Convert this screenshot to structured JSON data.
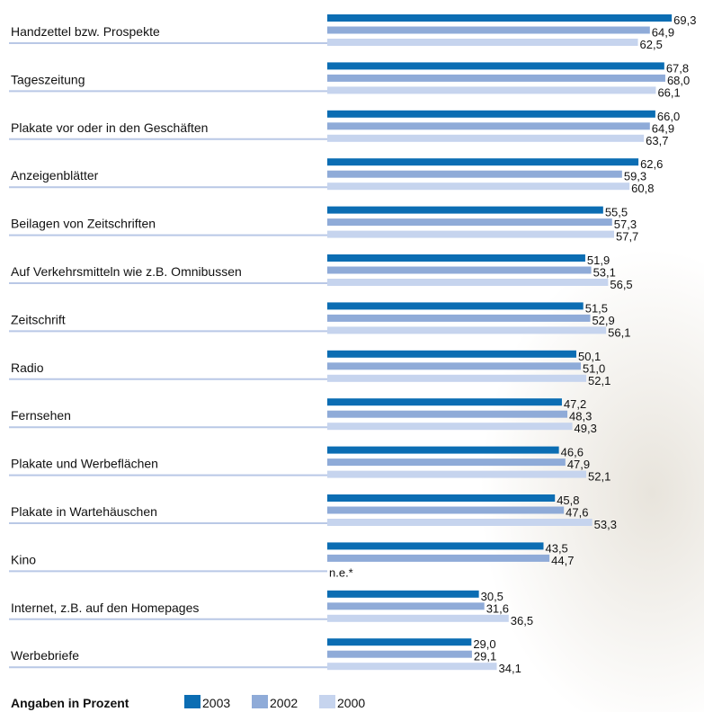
{
  "chart_data": {
    "type": "hbar",
    "categories": [
      "Handzettel bzw. Prospekte",
      "Tageszeitung",
      "Plakate vor oder in den Geschäften",
      "Anzeigenblätter",
      "Beilagen von Zeitschriften",
      "Auf Verkehrsmitteln wie z.B. Omnibussen",
      "Zeitschrift",
      "Radio",
      "Fernsehen",
      "Plakate und Werbeflächen",
      "Plakate in Wartehäuschen",
      "Kino",
      "Internet, z.B. auf den Homepages",
      "Werbebriefe"
    ],
    "series": [
      {
        "name": "2003",
        "color": "#0b6db3",
        "values": [
          69.3,
          67.8,
          66.0,
          62.6,
          55.5,
          51.9,
          51.5,
          50.1,
          47.2,
          46.6,
          45.8,
          43.5,
          30.5,
          29.0
        ],
        "value_labels": [
          "69,3",
          "67,8",
          "66,0",
          "62,6",
          "55,5",
          "51,9",
          "51,5",
          "50,1",
          "47,2",
          "46,6",
          "45,8",
          "43,5",
          "30,5",
          "29,0"
        ]
      },
      {
        "name": "2002",
        "color": "#8fabd8",
        "values": [
          64.9,
          68.0,
          64.9,
          59.3,
          57.3,
          53.1,
          52.9,
          51.0,
          48.3,
          47.9,
          47.6,
          44.7,
          31.6,
          29.1
        ],
        "value_labels": [
          "64,9",
          "68,0",
          "64,9",
          "59,3",
          "57,3",
          "53,1",
          "52,9",
          "51,0",
          "48,3",
          "47,9",
          "47,6",
          "44,7",
          "31,6",
          "29,1"
        ]
      },
      {
        "name": "2000",
        "color": "#c6d4ee",
        "values": [
          62.5,
          66.1,
          63.7,
          60.8,
          57.7,
          56.5,
          56.1,
          52.1,
          49.3,
          52.1,
          53.3,
          null,
          36.5,
          34.1
        ],
        "value_labels": [
          "62,5",
          "66,1",
          "63,7",
          "60,8",
          "57,7",
          "56,5",
          "56,1",
          "52,1",
          "49,3",
          "52,1",
          "53,3",
          "n.e.*",
          "36,5",
          "34,1"
        ]
      }
    ],
    "xlim": [
      0,
      70
    ],
    "legend_title": "Angaben in Prozent",
    "legend": "bottom-left"
  }
}
